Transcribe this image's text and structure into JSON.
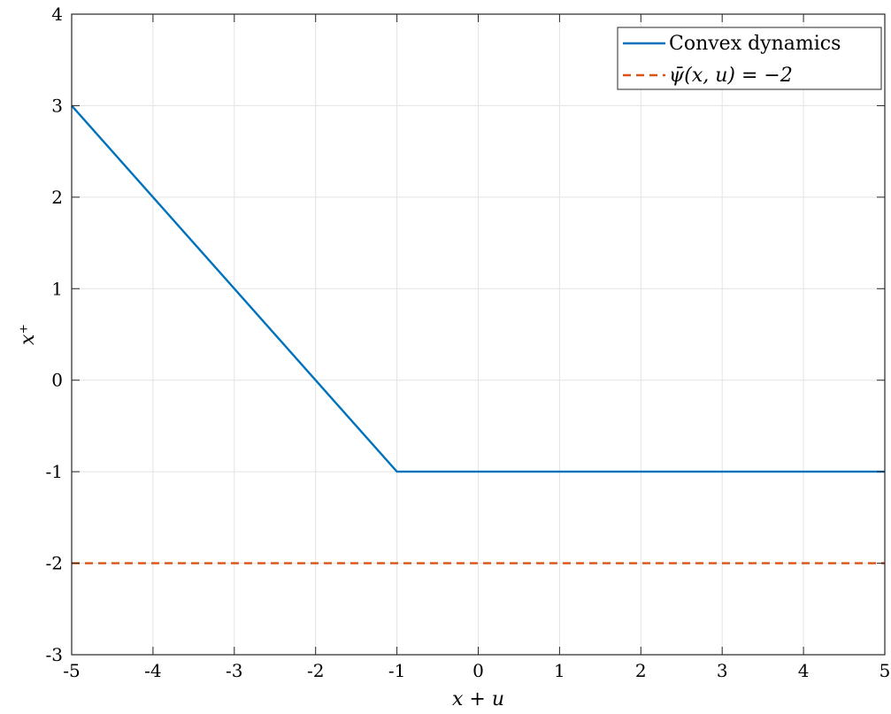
{
  "chart_data": {
    "type": "line",
    "xlabel": "x + u",
    "ylabel": "x⁺",
    "xlim": [
      -5,
      5
    ],
    "ylim": [
      -3,
      4
    ],
    "xticks": [
      -5,
      -4,
      -3,
      -2,
      -1,
      0,
      1,
      2,
      3,
      4,
      5
    ],
    "yticks": [
      -3,
      -2,
      -1,
      0,
      1,
      2,
      3,
      4
    ],
    "xtick_labels": [
      "-5",
      "-4",
      "-3",
      "-2",
      "-1",
      "0",
      "1",
      "2",
      "3",
      "4",
      "5"
    ],
    "ytick_labels": [
      "-3",
      "-2",
      "-1",
      "0",
      "1",
      "2",
      "3",
      "4"
    ],
    "grid": true,
    "legend_position": "top-right",
    "series": [
      {
        "name": "Convex dynamics",
        "style": "solid",
        "color": "#0072BD",
        "x": [
          -5,
          -1,
          5
        ],
        "y": [
          3,
          -1,
          -1
        ]
      },
      {
        "name": "ψ̄(x, u) = −2",
        "style": "dashed",
        "color": "#D95319",
        "x": [
          -5,
          5
        ],
        "y": [
          -2,
          -2
        ]
      }
    ]
  }
}
